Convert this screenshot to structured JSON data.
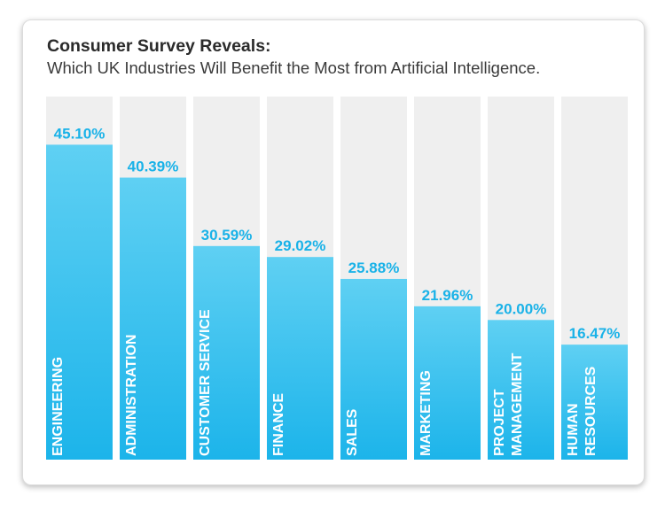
{
  "header": {
    "title": "Consumer Survey Reveals:",
    "subtitle": "Which UK Industries Will Benefit the Most from Artificial Intelligence."
  },
  "colors": {
    "bar_top": "#5fd0f3",
    "bar_bottom": "#1cb4ea",
    "track": "#efefef",
    "value_label": "#19b2e8"
  },
  "chart_data": {
    "type": "bar",
    "title": "Consumer Survey Reveals:",
    "subtitle": "Which UK Industries Will Benefit the Most from Artificial Intelligence.",
    "categories": [
      [
        "ENGINEERING"
      ],
      [
        "ADMINISTRATION"
      ],
      [
        "CUSTOMER SERVICE"
      ],
      [
        "FINANCE"
      ],
      [
        "SALES"
      ],
      [
        "MARKETING"
      ],
      [
        "PROJECT",
        "MANAGEMENT"
      ],
      [
        "HUMAN",
        "RESOURCES"
      ]
    ],
    "values": [
      45.1,
      40.39,
      30.59,
      29.02,
      25.88,
      21.96,
      20.0,
      16.47
    ],
    "value_labels": [
      "45.10%",
      "40.39%",
      "30.59%",
      "29.02%",
      "25.88%",
      "21.96%",
      "20.00%",
      "16.47%"
    ],
    "ylim": [
      0,
      52
    ],
    "xlabel": "",
    "ylabel": "",
    "grid": false,
    "legend": "none"
  }
}
